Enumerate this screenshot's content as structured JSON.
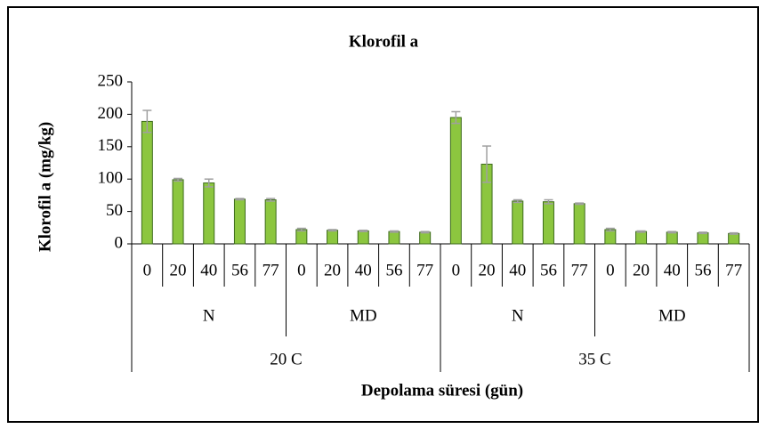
{
  "chart_data": {
    "type": "bar",
    "title": "Klorofil a",
    "x_label": "Depolama süresi (gün)",
    "y_label": "Klorofil a  (mg/kg)",
    "groups": [
      {
        "name": "20 C",
        "subgroups": [
          {
            "name": "N",
            "categories": [
              "0",
              "20",
              "40",
              "56",
              "77"
            ]
          },
          {
            "name": "MD",
            "categories": [
              "0",
              "20",
              "40",
              "56",
              "77"
            ]
          }
        ]
      },
      {
        "name": "35 C",
        "subgroups": [
          {
            "name": "N",
            "categories": [
              "0",
              "20",
              "40",
              "56",
              "77"
            ]
          },
          {
            "name": "MD",
            "categories": [
              "0",
              "20",
              "40",
              "56",
              "77"
            ]
          }
        ]
      }
    ],
    "values": [
      189,
      99,
      94,
      69,
      68,
      22,
      21,
      20,
      19,
      18,
      195,
      123,
      66,
      65,
      62,
      22,
      19,
      18,
      17,
      16
    ],
    "errors": [
      17,
      2,
      6,
      1,
      2,
      2,
      1,
      1,
      1,
      1,
      9,
      28,
      2,
      3,
      1,
      2,
      1,
      1,
      1,
      1
    ],
    "color": "#8cc63f",
    "edge_color": "#3d6b1c",
    "error_color": "#a0a0a0",
    "ylim": [
      0,
      250
    ],
    "yticks": [
      0,
      50,
      100,
      150,
      200,
      250
    ]
  }
}
